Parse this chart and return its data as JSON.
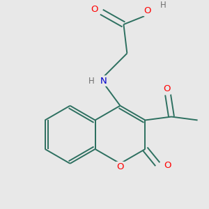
{
  "bg_color": "#e8e8e8",
  "bond_color": "#2d7060",
  "atom_colors": {
    "O": "#ff0000",
    "N": "#0000cc",
    "H": "#707070",
    "C": "#2d7060"
  },
  "figsize": [
    3.0,
    3.0
  ],
  "dpi": 100
}
